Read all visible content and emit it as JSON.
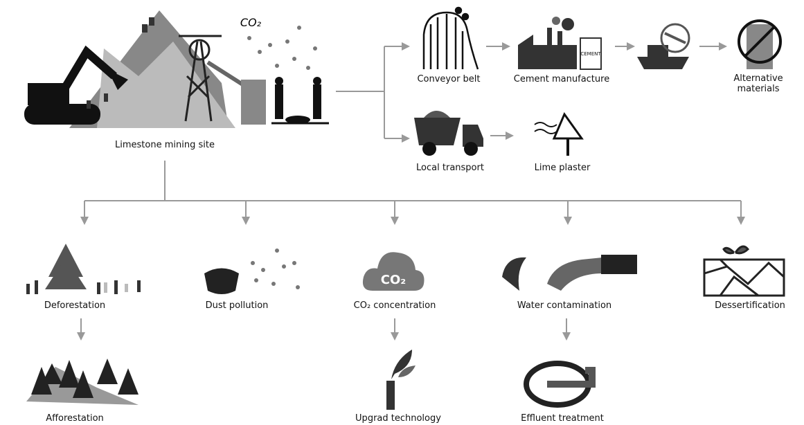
{
  "mining_site": {
    "label": "Limestone mining site",
    "emission": "CO₂"
  },
  "industrial_chain": [
    {
      "label": "Conveyor belt"
    },
    {
      "label": "Cement manufacture",
      "bag_label": "CEMENT"
    },
    {
      "label": "Alternative materials"
    }
  ],
  "local_chain": [
    {
      "label": "Local transport"
    },
    {
      "label": "Lime plaster"
    }
  ],
  "impacts": [
    {
      "label": "Deforestation",
      "remedy": "Afforestation"
    },
    {
      "label": "Dust pollution"
    },
    {
      "label": "CO₂ concentration",
      "icon_label": "CO₂",
      "remedy": "Upgrad technology"
    },
    {
      "label": "Water contamination",
      "remedy": "Effluent treatment"
    },
    {
      "label": "Dessertification"
    }
  ]
}
